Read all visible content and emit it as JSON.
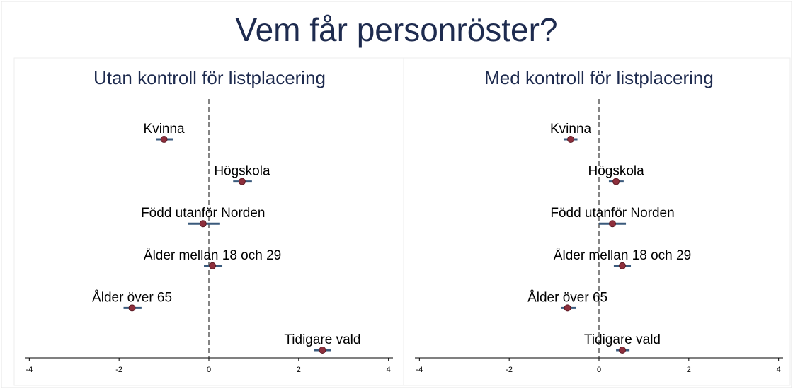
{
  "title": "Vem får personröster?",
  "chart_data": [
    {
      "type": "coefplot",
      "title": "Utan kontroll för listplacering",
      "categories": [
        "Kvinna",
        "Högskola",
        "Född utanför Norden",
        "Ålder mellan 18 och 29",
        "Ålder över 65",
        "Tidigare vald"
      ],
      "values": [
        -1.0,
        0.74,
        -0.13,
        0.08,
        -1.71,
        2.53
      ],
      "lower": [
        -1.17,
        0.54,
        -0.47,
        -0.11,
        -1.9,
        2.34
      ],
      "upper": [
        -0.8,
        0.96,
        0.25,
        0.3,
        -1.5,
        2.72
      ],
      "xlim": [
        -4.1,
        4.1
      ],
      "xticks": [
        -4,
        -2,
        0,
        2,
        4
      ],
      "xline": 0,
      "color": "#8e2f3c",
      "ci_color": "#3a5a7c"
    },
    {
      "type": "coefplot",
      "title": "Med kontroll för listplacering",
      "categories": [
        "Kvinna",
        "Högskola",
        "Född utanför Norden",
        "Ålder mellan 18 och 29",
        "Ålder över 65",
        "Tidigare vald"
      ],
      "values": [
        -0.63,
        0.38,
        0.3,
        0.52,
        -0.7,
        0.52
      ],
      "lower": [
        -0.78,
        0.22,
        0.0,
        0.33,
        -0.84,
        0.38
      ],
      "upper": [
        -0.48,
        0.55,
        0.6,
        0.71,
        -0.51,
        0.68
      ],
      "xlim": [
        -4.1,
        4.1
      ],
      "xticks": [
        -4,
        -2,
        0,
        2,
        4
      ],
      "xline": 0,
      "color": "#8e2f3c",
      "ci_color": "#3a5a7c"
    }
  ]
}
